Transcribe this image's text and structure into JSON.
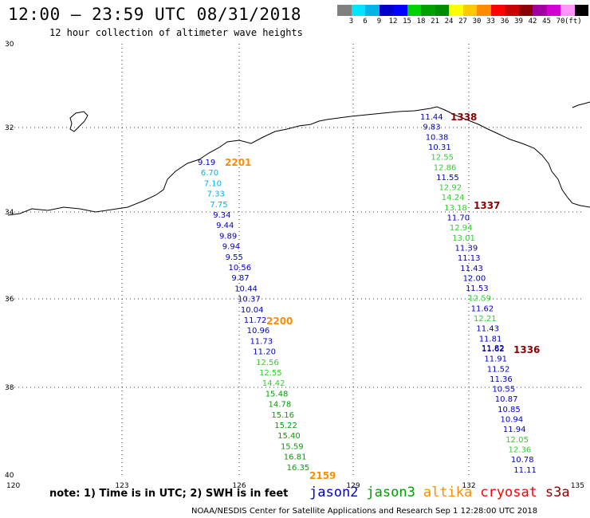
{
  "header": {
    "title": "12:00 – 23:59 UTC 08/31/2018",
    "subtitle": "12 hour collection of altimeter wave heights"
  },
  "colorbar": {
    "colors": [
      "#808080",
      "#00e5ff",
      "#00b4e6",
      "#0000c8",
      "#0000ff",
      "#00d200",
      "#00a000",
      "#008c00",
      "#ffff00",
      "#ffc800",
      "#ff8c00",
      "#ff0000",
      "#c80000",
      "#8c0000",
      "#a000a0",
      "#d200d2",
      "#ff96ff",
      "#000000"
    ],
    "labels": [
      "3",
      "6",
      "9",
      "12",
      "15",
      "18",
      "21",
      "24",
      "27",
      "30",
      "33",
      "36",
      "39",
      "42",
      "45",
      "70"
    ],
    "unit": "(ft)"
  },
  "axes": {
    "lat_labels": [
      "30",
      "32",
      "34",
      "36",
      "38",
      "40"
    ],
    "lon_labels": [
      "120",
      "123",
      "126",
      "129",
      "132",
      "135"
    ]
  },
  "satellites": {
    "colors": {
      "jason2": "#0000c8",
      "jason3": "#00a000",
      "altika": "#ff8c00",
      "cryosat": "#c80000",
      "s3a": "#8c0000",
      "light": "#00b4e6",
      "green": "#33cc33"
    },
    "legend": [
      {
        "name": "jason2",
        "color": "#0000c8"
      },
      {
        "name": "jason3",
        "color": "#00a000"
      },
      {
        "name": "altika",
        "color": "#ff8c00"
      },
      {
        "name": "cryosat",
        "color": "#ff0000"
      },
      {
        "name": "s3a",
        "color": "#8c0000"
      }
    ]
  },
  "tracks": {
    "time_labels": [
      {
        "text": "2201",
        "color": "#ff8c00"
      },
      {
        "text": "2200",
        "color": "#ff8c00"
      },
      {
        "text": "2159",
        "color": "#ff8c00"
      },
      {
        "text": "1338",
        "color": "#8c0000"
      },
      {
        "text": "1337",
        "color": "#8c0000"
      },
      {
        "text": "1336",
        "color": "#8c0000"
      }
    ],
    "west_values": [
      "9.19",
      "6.70",
      "7.10",
      "7.33",
      "7.75",
      "9.34",
      "9.44",
      "9.89",
      "9.94",
      "9.55",
      "10.56",
      "9.87",
      "10.44",
      "10.37",
      "10.04",
      "11.72",
      "10.96",
      "11.73",
      "11.20",
      "12.56",
      "12.55",
      "14.42",
      "15.48",
      "14.78",
      "15.16",
      "15.22",
      "15.40",
      "15.59",
      "16.81",
      "16.35"
    ],
    "west_colors": [
      "#0000c8",
      "#00b4e6",
      "#00b4e6",
      "#00b4e6",
      "#00b4e6",
      "#0000c8",
      "#0000c8",
      "#0000c8",
      "#0000c8",
      "#0000c8",
      "#0000c8",
      "#0000c8",
      "#0000c8",
      "#0000c8",
      "#0000c8",
      "#0000c8",
      "#0000c8",
      "#0000c8",
      "#0000c8",
      "#33cc33",
      "#33cc33",
      "#33cc33",
      "#00a000",
      "#00a000",
      "#00a000",
      "#00a000",
      "#00a000",
      "#00a000",
      "#00a000",
      "#00a000"
    ],
    "east_values": [
      "11.44",
      "9.83",
      "10.38",
      "10.31",
      "12.55",
      "12.86",
      "11.55",
      "12.92",
      "14.24",
      "13.18",
      "11.70",
      "12.94",
      "13.01",
      "11.39",
      "11.13",
      "11.43",
      "12.00",
      "11.53",
      "12.59",
      "11.62",
      "12.21",
      "11.43",
      "11.81",
      "11.62",
      "11.91",
      "11.52",
      "11.36",
      "10.55",
      "10.87",
      "10.85",
      "10.94",
      "11.94",
      "12.05",
      "12.36",
      "10.78",
      "11.11"
    ],
    "east_colors": [
      "#0000c8",
      "#0000c8",
      "#0000c8",
      "#0000c8",
      "#33cc33",
      "#33cc33",
      "#0000c8",
      "#33cc33",
      "#33cc33",
      "#33cc33",
      "#0000c8",
      "#33cc33",
      "#33cc33",
      "#0000c8",
      "#0000c8",
      "#0000c8",
      "#0000c8",
      "#0000c8",
      "#33cc33",
      "#0000c8",
      "#33cc33",
      "#0000c8",
      "#0000c8",
      "#0000c8",
      "#0000c8",
      "#0000c8",
      "#0000c8",
      "#0000c8",
      "#0000c8",
      "#0000c8",
      "#0000c8",
      "#0000c8",
      "#33cc33",
      "#33cc33",
      "#0000c8",
      "#0000c8"
    ],
    "east_overlap": "11.82"
  },
  "note": "note: 1) Time is in UTC; 2) SWH is in feet",
  "footer": "NOAA/NESDIS Center for Satellite Applications and Research   Sep  1 12:28:00 UTC 2018"
}
